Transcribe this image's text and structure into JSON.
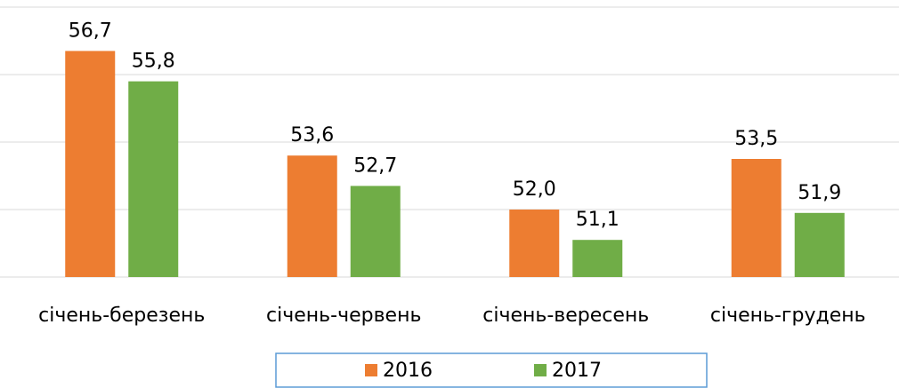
{
  "chart_data": {
    "type": "bar",
    "categories": [
      "січень-березень",
      "січень-червень",
      "січень-вересень",
      "січень-грудень"
    ],
    "series": [
      {
        "name": "2016",
        "color": "#ed7d31",
        "values": [
          56.7,
          53.6,
          52.0,
          53.5
        ],
        "value_labels": [
          "56,7",
          "53,6",
          "52,0",
          "53,5"
        ]
      },
      {
        "name": "2017",
        "color": "#70ad47",
        "values": [
          55.8,
          52.7,
          51.1,
          51.9
        ],
        "value_labels": [
          "55,8",
          "52,7",
          "51,1",
          "51,9"
        ]
      }
    ],
    "ylim": [
      50,
      58
    ],
    "yticks": [
      50,
      52,
      54,
      56,
      58
    ],
    "grid": true,
    "legend": "bottom"
  }
}
